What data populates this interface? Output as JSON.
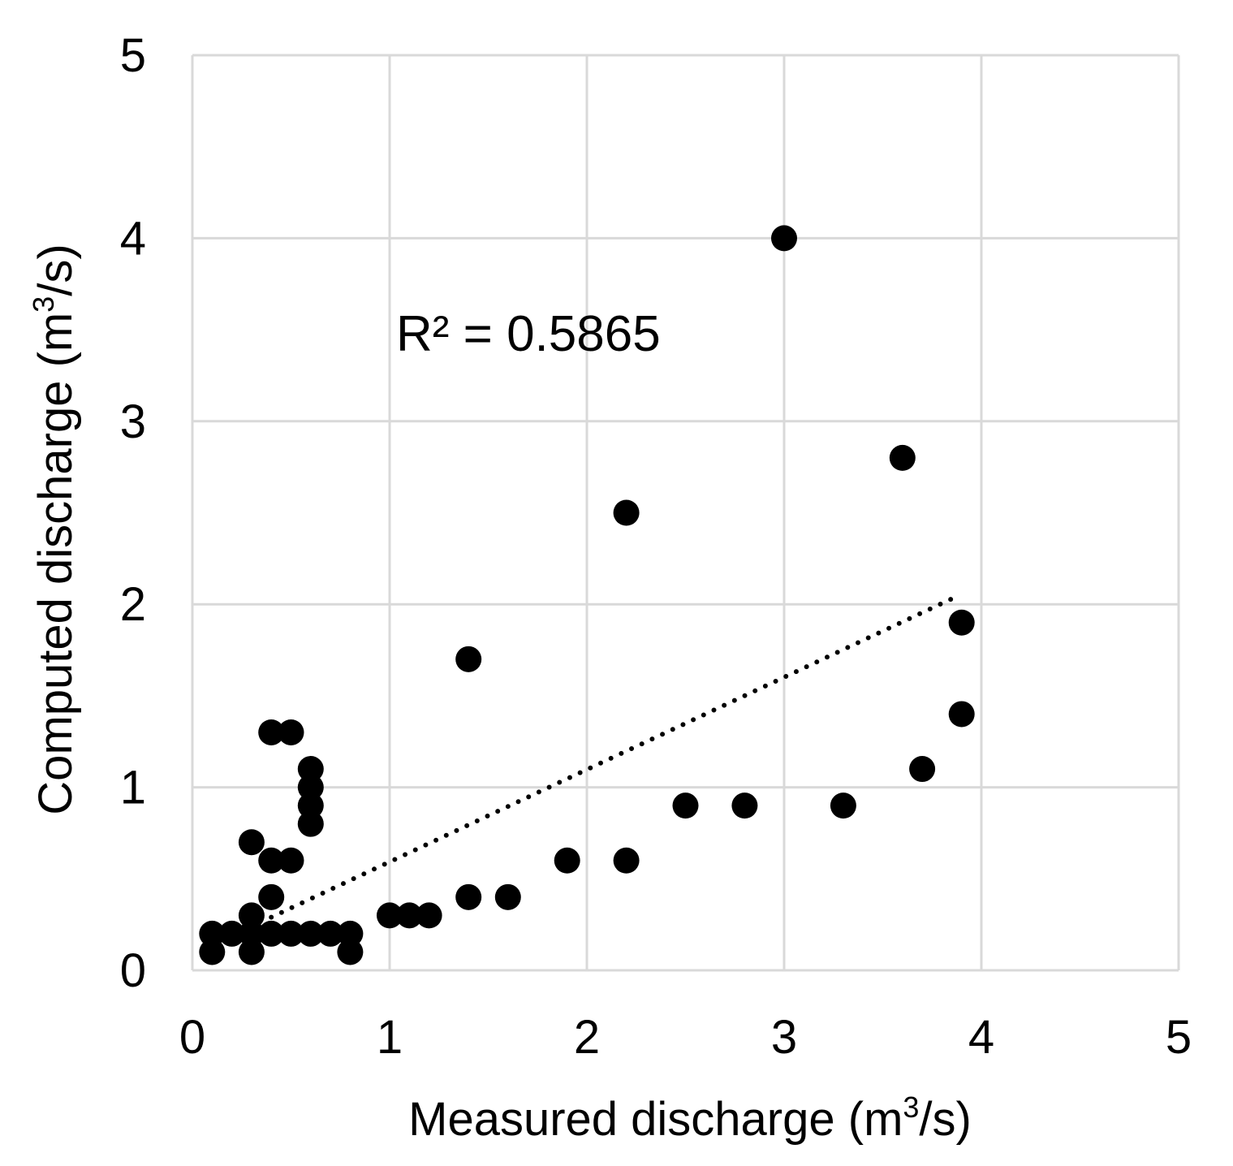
{
  "chart_data": {
    "type": "scatter",
    "title": "",
    "xlabel": {
      "prefix": "Measured discharge (m",
      "superscript": "3",
      "suffix": "/s)"
    },
    "ylabel": {
      "prefix": "Computed discharge (m",
      "superscript": "3",
      "suffix": "/s)"
    },
    "xlim": [
      0,
      5
    ],
    "ylim": [
      0,
      5
    ],
    "xticks": [
      "0",
      "1",
      "2",
      "3",
      "4",
      "5"
    ],
    "yticks": [
      "0",
      "1",
      "2",
      "3",
      "4",
      "5"
    ],
    "grid": true,
    "annotation": "R² = 0.5865",
    "trendline": {
      "style": "dotted",
      "x": [
        0.4,
        3.85
      ],
      "y": [
        0.29,
        2.03
      ]
    },
    "series": [
      {
        "name": "data",
        "x": [
          0.1,
          0.1,
          0.2,
          0.3,
          0.3,
          0.3,
          0.3,
          0.4,
          0.4,
          0.4,
          0.4,
          0.5,
          0.5,
          0.5,
          0.6,
          0.6,
          0.6,
          0.6,
          0.6,
          0.7,
          0.8,
          0.8,
          1.0,
          1.1,
          1.2,
          1.4,
          1.4,
          1.6,
          1.9,
          2.2,
          2.2,
          2.5,
          2.8,
          3.0,
          3.3,
          3.6,
          3.7,
          3.9,
          3.9
        ],
        "y": [
          0.1,
          0.2,
          0.2,
          0.1,
          0.2,
          0.3,
          0.7,
          0.2,
          0.4,
          0.6,
          1.3,
          0.2,
          0.6,
          1.3,
          0.2,
          0.8,
          0.9,
          1.0,
          1.1,
          0.2,
          0.1,
          0.2,
          0.3,
          0.3,
          0.3,
          0.4,
          1.7,
          0.4,
          0.6,
          0.6,
          2.5,
          0.9,
          0.9,
          4.0,
          0.9,
          2.8,
          1.1,
          1.4,
          1.9
        ]
      }
    ],
    "colors": {
      "marker": "#000000",
      "grid": "#d9d9d9",
      "trendline": "#000000"
    }
  }
}
